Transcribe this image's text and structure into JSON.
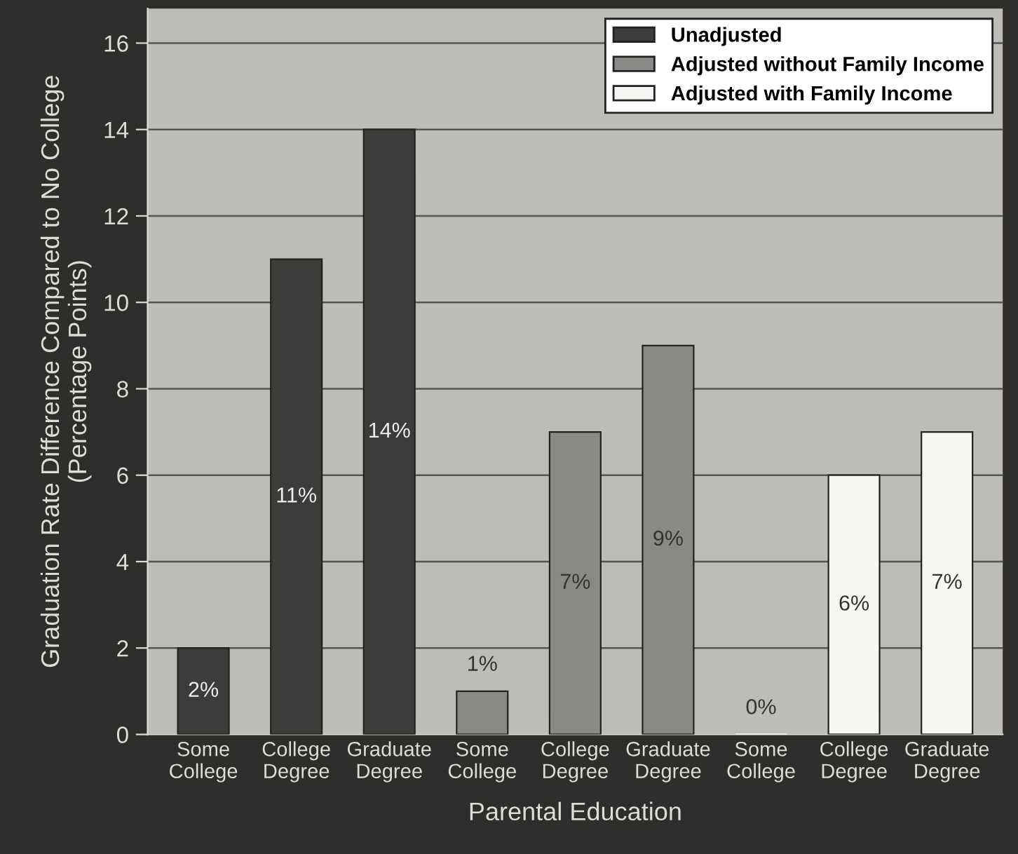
{
  "chart_data": {
    "type": "bar",
    "xlabel": "Parental Education",
    "ylabel": "Graduation Rate Difference Compared to No College\n(Percentage Points)",
    "categories": [
      "Some\nCollege",
      "College\nDegree",
      "Graduate\nDegree",
      "Some\nCollege",
      "College\nDegree",
      "Graduate\nDegree",
      "Some\nCollege",
      "College\nDegree",
      "Graduate\nDegree"
    ],
    "series": [
      {
        "name": "Unadjusted",
        "color": "#3e3c3a",
        "values": [
          2,
          11,
          14,
          null,
          null,
          null,
          null,
          null,
          null
        ],
        "value_labels": [
          "2%",
          "11%",
          "14%",
          null,
          null,
          null,
          null,
          null,
          null
        ]
      },
      {
        "name": "Adjusted without Family Income",
        "color": "#8b8986",
        "values": [
          null,
          null,
          null,
          1,
          7,
          9,
          null,
          null,
          null
        ],
        "value_labels": [
          null,
          null,
          null,
          "1%",
          "7%",
          "9%",
          null,
          null,
          null
        ]
      },
      {
        "name": "Adjusted with Family Income",
        "color": "#f7f6f1",
        "values": [
          null,
          null,
          null,
          null,
          null,
          null,
          0,
          6,
          7
        ],
        "value_labels": [
          null,
          null,
          null,
          null,
          null,
          null,
          "0%",
          "6%",
          "7%"
        ]
      }
    ],
    "ylim": [
      0,
      16.8
    ],
    "yticks": [
      0,
      2,
      4,
      6,
      8,
      10,
      12,
      14,
      16
    ],
    "grid": "y",
    "legend": "top right"
  }
}
